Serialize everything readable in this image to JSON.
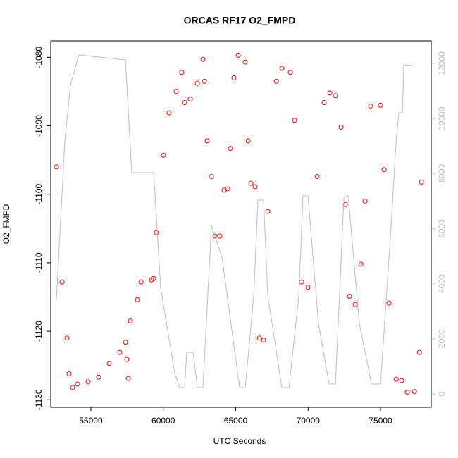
{
  "chart_data": {
    "type": "scatter",
    "title": "ORCAS RF17 O2_FMPD",
    "x_label": "UTC Seconds",
    "y_label": "O2_FMPD",
    "xlim": [
      52230,
      78500
    ],
    "ylim": [
      -1131.1,
      -1077.6
    ],
    "y2lim": [
      -486,
      12819
    ],
    "xticks": [
      55000,
      60000,
      65000,
      70000,
      75000
    ],
    "yticks": [
      -1080,
      -1090,
      -1100,
      -1110,
      -1120,
      -1130
    ],
    "y2ticks": [
      0,
      2000,
      4000,
      6000,
      8000,
      10000,
      12000
    ],
    "y2_color": "#bebebe",
    "series": [
      {
        "style": "points",
        "color": "#ff0000",
        "x": [
          52620,
          53010,
          53350,
          53495,
          53740,
          54080,
          54810,
          55540,
          56270,
          57000,
          57390,
          57485,
          57585,
          57730,
          58215,
          58460,
          59190,
          59335,
          59530,
          60015,
          60405,
          60890,
          61280,
          61475,
          61865,
          62350,
          62740,
          62840,
          63030,
          63325,
          63570,
          63910,
          64200,
          64445,
          64640,
          64880,
          65175,
          65660,
          65855,
          66050,
          66340,
          66635,
          66925,
          67220,
          67800,
          68190,
          68775,
          69065,
          69555,
          69990,
          70625,
          71110,
          71500,
          71890,
          72280,
          72570,
          72860,
          73250,
          73640,
          73930,
          74320,
          75000,
          75245,
          75585,
          76075,
          76460,
          76850,
          77340,
          77680,
          77825
        ],
        "values": [
          -1096.0,
          -1112.8,
          -1121.0,
          -1126.2,
          -1128.2,
          -1127.7,
          -1127.4,
          -1126.7,
          -1124.7,
          -1123.1,
          -1121.6,
          -1124.1,
          -1126.9,
          -1118.5,
          -1115.4,
          -1112.8,
          -1112.5,
          -1112.3,
          -1105.6,
          -1094.3,
          -1088.1,
          -1085.0,
          -1082.2,
          -1086.6,
          -1086.1,
          -1083.8,
          -1080.3,
          -1083.5,
          -1092.2,
          -1097.4,
          -1106.1,
          -1106.1,
          -1099.4,
          -1099.2,
          -1093.3,
          -1083.0,
          -1079.7,
          -1080.7,
          -1092.2,
          -1098.4,
          -1098.9,
          -1121.0,
          -1121.3,
          -1102.5,
          -1083.5,
          -1081.6,
          -1082.2,
          -1089.2,
          -1112.8,
          -1113.6,
          -1097.4,
          -1086.6,
          -1085.2,
          -1085.6,
          -1090.2,
          -1101.5,
          -1114.9,
          -1116.1,
          -1110.2,
          -1101.0,
          -1087.1,
          -1087.0,
          -1096.4,
          -1115.9,
          -1127.0,
          -1127.2,
          -1128.9,
          -1128.8,
          -1123.1,
          -1098.2
        ]
      },
      {
        "style": "line",
        "color": "#bebebe",
        "axis": "y2",
        "x": [
          52620,
          53205,
          53595,
          54175,
          57390,
          57825,
          59335,
          59820,
          60795,
          61135,
          61475,
          61620,
          62060,
          62350,
          62740,
          63325,
          64055,
          65270,
          65660,
          66245,
          66535,
          66925,
          67220,
          68190,
          68680,
          69360,
          69650,
          69990,
          70720,
          71450,
          71890,
          72475,
          72765,
          73545,
          74370,
          75000,
          75735,
          76075,
          76270,
          76510,
          76610,
          77195
        ],
        "values": [
          3429,
          9187,
          11234,
          12308,
          12129,
          8035,
          8035,
          3838,
          742,
          230,
          230,
          1510,
          1510,
          230,
          230,
          6116,
          4964,
          230,
          230,
          3557,
          7037,
          7037,
          3557,
          230,
          230,
          3557,
          7191,
          7191,
          2533,
          358,
          358,
          7140,
          7191,
          2533,
          358,
          358,
          6116,
          9187,
          10210,
          10210,
          11950,
          11925
        ]
      }
    ]
  }
}
